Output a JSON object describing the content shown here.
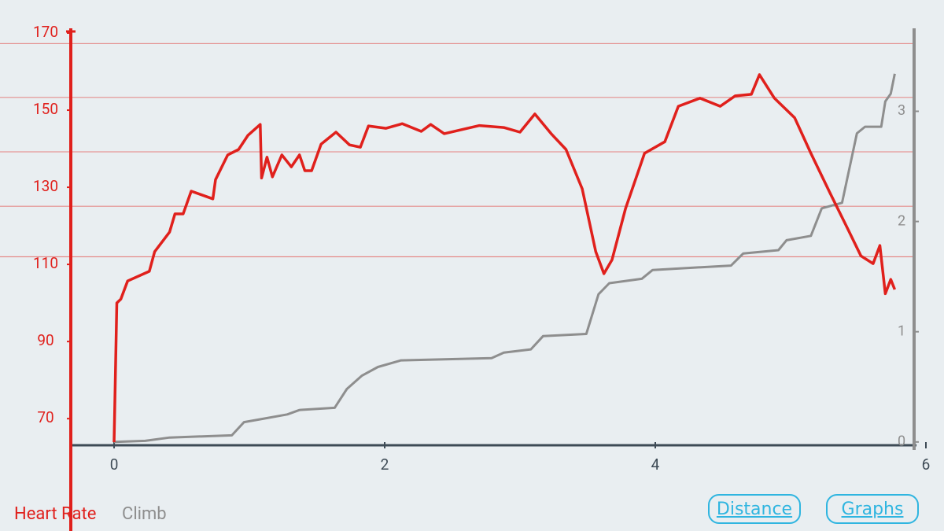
{
  "chart_data": {
    "type": "line",
    "xlim": [
      -0.32,
      6
    ],
    "xticks": [
      0,
      2,
      4,
      6
    ],
    "ylim": [
      63.1,
      170
    ],
    "yticks": [
      70,
      90,
      110,
      130,
      150,
      170
    ],
    "y2lim": [
      -0.03,
      3.71
    ],
    "y2ticks": [
      0,
      1,
      2,
      3
    ],
    "grid_lines": [
      167.3,
      153.3,
      139.2,
      125.1,
      112
    ],
    "series": [
      {
        "name": "Heart Rate",
        "color": "#e0201c",
        "x": [
          0,
          0.02,
          0.05,
          0.1,
          0.26,
          0.3,
          0.41,
          0.45,
          0.51,
          0.57,
          0.73,
          0.75,
          0.84,
          0.92,
          0.99,
          1.08,
          1.09,
          1.13,
          1.17,
          1.24,
          1.31,
          1.37,
          1.41,
          1.46,
          1.53,
          1.64,
          1.74,
          1.82,
          1.88,
          2.01,
          2.13,
          2.27,
          2.34,
          2.44,
          2.7,
          2.88,
          3.0,
          3.11,
          3.23,
          3.34,
          3.46,
          3.56,
          3.62,
          3.68,
          3.78,
          3.92,
          4.07,
          4.17,
          4.33,
          4.48,
          4.59,
          4.71,
          4.77,
          4.88,
          5.03,
          5.15,
          5.29,
          5.42,
          5.52,
          5.61,
          5.66,
          5.7,
          5.74,
          5.77
        ],
        "values": [
          63.9,
          100,
          101,
          105.7,
          108.2,
          113.3,
          118.4,
          123.1,
          123.1,
          129,
          127,
          132,
          138.4,
          139.8,
          143.5,
          146.3,
          132.4,
          137.8,
          132.7,
          138.4,
          135.3,
          138.4,
          134.3,
          134.3,
          141.2,
          144.3,
          141,
          140.4,
          145.9,
          145.3,
          146.5,
          144.5,
          146.3,
          143.9,
          146,
          145.5,
          144.3,
          149,
          143.9,
          139.8,
          129.6,
          113.3,
          107.6,
          111.2,
          124.5,
          138.8,
          141.8,
          151,
          153.1,
          151,
          153.7,
          154.1,
          159.2,
          153.1,
          148,
          138.8,
          128.6,
          119.4,
          112.2,
          110.2,
          114.9,
          102.4,
          106.1,
          103.5
        ]
      },
      {
        "name": "Climb",
        "color": "#8e8e8e",
        "axis": "y2",
        "x": [
          0,
          0.23,
          0.41,
          0.87,
          0.96,
          1.1,
          1.28,
          1.37,
          1.63,
          1.72,
          1.83,
          1.95,
          2.12,
          2.79,
          2.88,
          3.08,
          3.17,
          3.49,
          3.58,
          3.66,
          3.9,
          3.98,
          4.56,
          4.65,
          4.91,
          4.97,
          5.15,
          5.23,
          5.38,
          5.49,
          5.55,
          5.67,
          5.7,
          5.74,
          5.77
        ],
        "values": [
          0,
          0.01,
          0.04,
          0.06,
          0.18,
          0.21,
          0.25,
          0.29,
          0.31,
          0.48,
          0.6,
          0.68,
          0.74,
          0.76,
          0.81,
          0.84,
          0.96,
          0.98,
          1.34,
          1.44,
          1.48,
          1.56,
          1.6,
          1.71,
          1.74,
          1.83,
          1.87,
          2.12,
          2.17,
          2.8,
          2.86,
          2.86,
          3.09,
          3.16,
          3.34
        ]
      }
    ]
  },
  "buttons": [
    "Distance",
    "Graphs"
  ]
}
